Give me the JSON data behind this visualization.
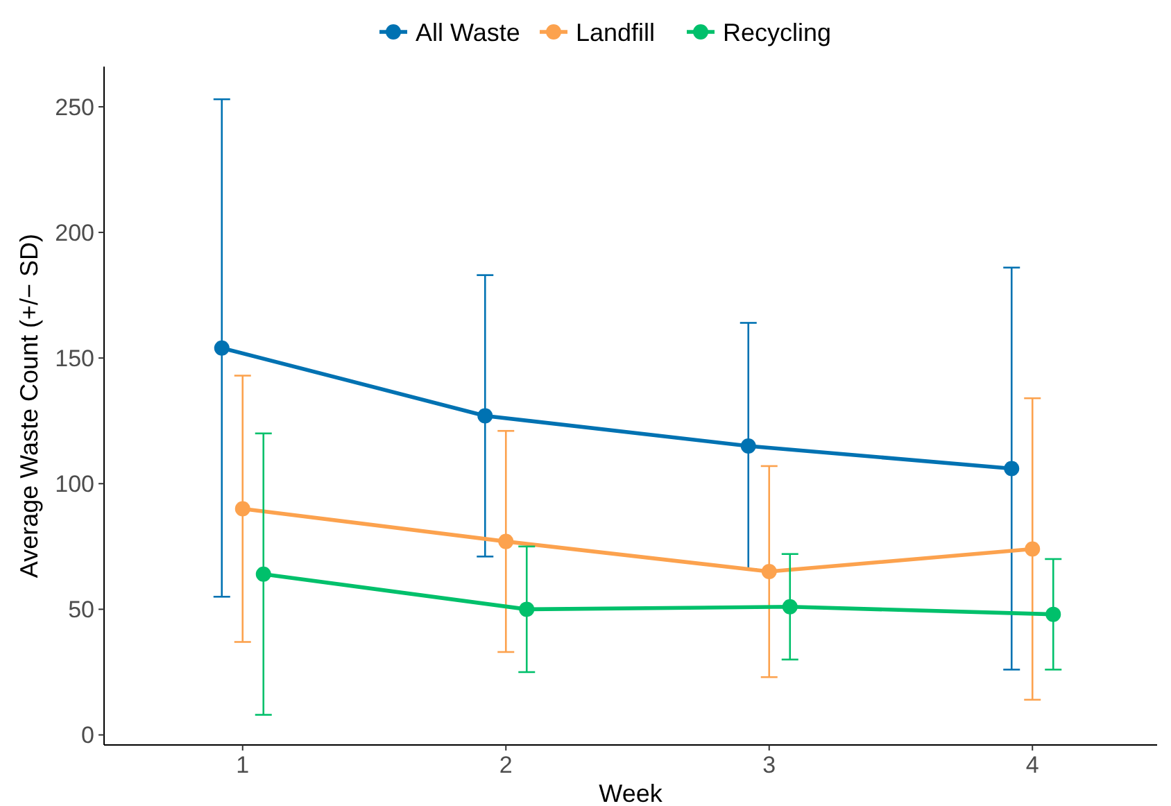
{
  "chart_data": {
    "type": "line",
    "xlabel": "Week",
    "ylabel": "Average Waste Count (+/− SD)",
    "categories": [
      "1",
      "2",
      "3",
      "4"
    ],
    "ylim": [
      -4,
      266
    ],
    "yticks": [
      0,
      50,
      100,
      150,
      200,
      250
    ],
    "legend": "top",
    "marker": "circle",
    "line_style": "solid",
    "grid": false,
    "series": [
      {
        "name": "All Waste",
        "color": "#0072b2",
        "values": [
          154,
          127,
          115,
          106
        ],
        "errors": [
          99,
          56,
          49,
          80
        ]
      },
      {
        "name": "Landfill",
        "color": "#fca24e",
        "values": [
          90,
          77,
          65,
          74
        ],
        "errors": [
          53,
          44,
          42,
          60
        ]
      },
      {
        "name": "Recycling",
        "color": "#00c06b",
        "values": [
          64,
          50,
          51,
          48
        ],
        "errors": [
          56,
          25,
          21,
          22
        ]
      }
    ]
  }
}
